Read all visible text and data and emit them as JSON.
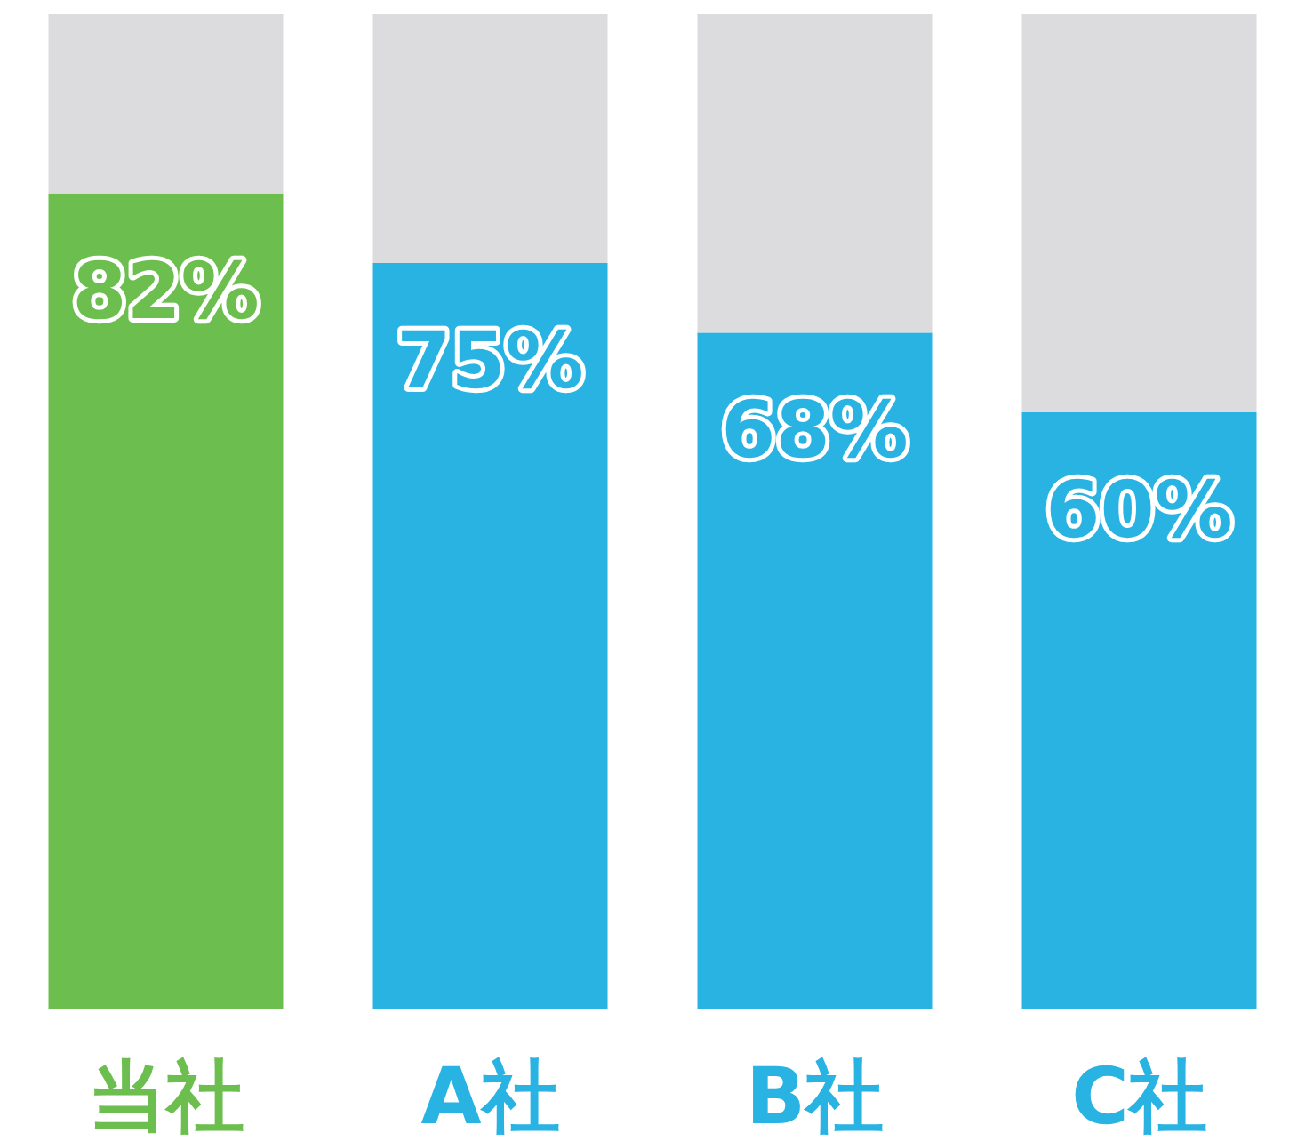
{
  "chart_data": {
    "type": "bar",
    "stacked": true,
    "categories": [
      "当社",
      "A社",
      "B社",
      "C社"
    ],
    "series": [
      {
        "colors": [
          "#6cbf4f",
          "#29b3e3",
          "#29b3e3",
          "#29b3e3"
        ],
        "values": [
          82,
          75,
          68,
          60
        ],
        "value_labels": [
          "82%",
          "75%",
          "68%",
          "60%"
        ]
      },
      {
        "color": "#dcdcde",
        "values": [
          18,
          25,
          32,
          40
        ]
      }
    ]
  }
}
